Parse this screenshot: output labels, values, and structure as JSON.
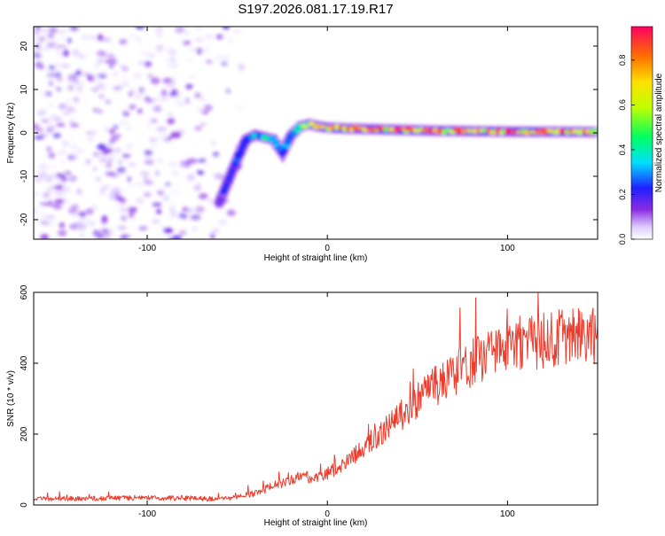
{
  "title": "S197.2026.081.17.19.R17",
  "colors": {
    "snr_line": "#ef3b2c",
    "axis": "#000000",
    "scatter": "#7b2cf0",
    "background": "#ffffff"
  },
  "chart_data": [
    {
      "type": "heatmap",
      "title": "S197.2026.081.17.19.R17",
      "xlabel": "Height of straight line (km)",
      "ylabel": "Frequency (Hz)",
      "xlim": [
        -163,
        150
      ],
      "ylim": [
        -24.5,
        24.5
      ],
      "x_ticks": [
        -100,
        0,
        100
      ],
      "y_ticks": [
        20,
        10,
        0,
        -10,
        -20
      ],
      "colorbar": {
        "label": "Normalized spectral amplitude",
        "range": [
          0,
          0.95
        ],
        "ticks": [
          0.0,
          0.2,
          0.4,
          0.6,
          0.8
        ]
      },
      "ridge_curve": {
        "x": [
          -60,
          -55,
          -50,
          -45,
          -40,
          -35,
          -30,
          -25,
          -20,
          -15,
          -10,
          -5,
          0,
          10,
          30,
          60,
          100,
          148
        ],
        "y": [
          -16,
          -11,
          -6,
          -1.5,
          -0.5,
          -1,
          -1.5,
          -4.5,
          -0.5,
          1.5,
          2,
          1.5,
          1.2,
          1,
          0.8,
          0.5,
          0.3,
          0.2
        ],
        "amplitude": [
          0.15,
          0.2,
          0.25,
          0.3,
          0.4,
          0.45,
          0.4,
          0.3,
          0.45,
          0.55,
          0.65,
          0.75,
          0.8,
          0.82,
          0.85,
          0.9,
          0.92,
          0.95
        ]
      },
      "noise_region": {
        "x_range": [
          -163,
          -45
        ],
        "y_range": [
          -24.5,
          24.5
        ],
        "amplitude_range": [
          0.0,
          0.1
        ]
      }
    },
    {
      "type": "line",
      "xlabel": "Height of straight line (km)",
      "ylabel": "SNR (10 * v/v)",
      "xlim": [
        -163,
        150
      ],
      "ylim": [
        0,
        600
      ],
      "x_ticks": [
        -100,
        0,
        100
      ],
      "y_ticks": [
        0,
        200,
        400,
        600
      ],
      "series": [
        {
          "name": "SNR",
          "x": [
            -163,
            -140,
            -120,
            -100,
            -80,
            -60,
            -50,
            -40,
            -30,
            -20,
            -15,
            -10,
            -5,
            0,
            10,
            20,
            30,
            40,
            50,
            60,
            70,
            80,
            90,
            100,
            110,
            120,
            130,
            140,
            150
          ],
          "y": [
            15,
            16,
            17,
            18,
            17,
            15,
            20,
            30,
            50,
            65,
            80,
            70,
            75,
            85,
            110,
            150,
            190,
            235,
            280,
            320,
            350,
            380,
            400,
            410,
            430,
            440,
            450,
            450,
            455
          ]
        }
      ]
    }
  ]
}
